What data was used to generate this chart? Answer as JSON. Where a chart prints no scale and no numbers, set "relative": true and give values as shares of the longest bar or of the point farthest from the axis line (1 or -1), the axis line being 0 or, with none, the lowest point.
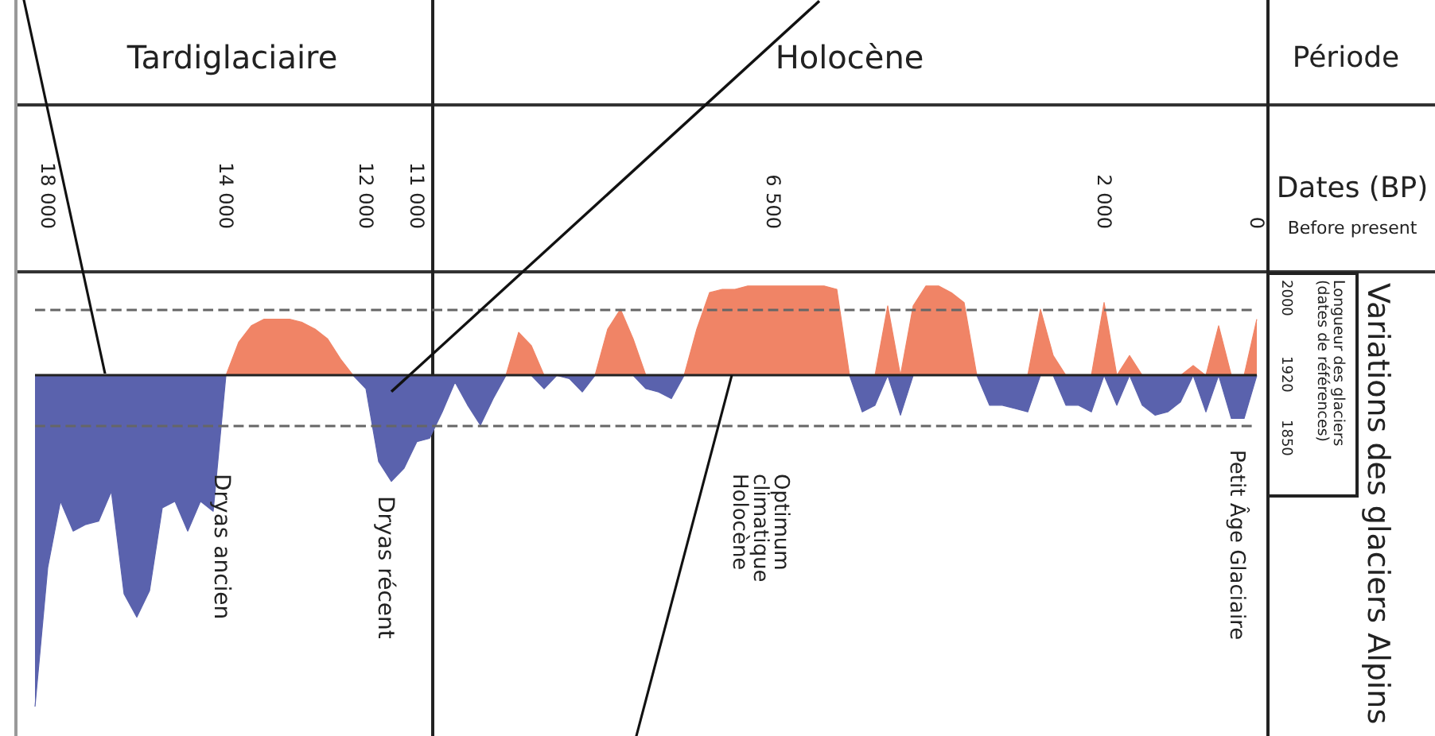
{
  "chart_data": {
    "type": "area",
    "relative": true,
    "xlabel": "Dates (BP)",
    "ylabel": "Variations des glaciers Alpins",
    "categories": [
      null,
      "18 000",
      null,
      null,
      null,
      null,
      null,
      null,
      null,
      null,
      null,
      null,
      null,
      null,
      null,
      "14 000",
      null,
      null,
      null,
      null,
      null,
      null,
      null,
      null,
      null,
      null,
      "12 000",
      null,
      null,
      null,
      "11 000",
      null,
      null,
      null,
      null,
      null,
      null,
      null,
      null,
      null,
      null,
      null,
      null,
      null,
      null,
      null,
      null,
      null,
      null,
      null,
      null,
      null,
      null,
      null,
      null,
      null,
      null,
      null,
      "6 500",
      null,
      null,
      null,
      null,
      null,
      null,
      null,
      null,
      null,
      null,
      null,
      null,
      null,
      null,
      null,
      null,
      null,
      null,
      null,
      null,
      null,
      null,
      null,
      null,
      null,
      "2 000",
      null,
      null,
      null,
      null,
      null,
      null,
      null,
      null,
      null,
      null,
      null,
      "0"
    ],
    "series": [
      {
        "color": "#f08466",
        "values": [
          0,
          0,
          0,
          0,
          0,
          0,
          0,
          0,
          0,
          0,
          0,
          0,
          0,
          0,
          0,
          0,
          0.1,
          0.15,
          0.17,
          0.17,
          0.17,
          0.16,
          0.14,
          0.11,
          0.05,
          0,
          0,
          0,
          0,
          0,
          0,
          0,
          0,
          0,
          0,
          0,
          0,
          0,
          0.13,
          0.09,
          0,
          0,
          0,
          0,
          0,
          0.14,
          0.2,
          0.11,
          0,
          0,
          0,
          0,
          0.14,
          0.25,
          0.26,
          0.26,
          0.27,
          0.27,
          0.27,
          0.27,
          0.27,
          0.27,
          0.27,
          0.26,
          0,
          0,
          0,
          0.21,
          0,
          0.21,
          0.27,
          0.27,
          0.25,
          0.22,
          0,
          0,
          0,
          0,
          0,
          0.2,
          0.06,
          0,
          0,
          0,
          0.22,
          0,
          0.06,
          0,
          0,
          0,
          0,
          0.03,
          0,
          0.15,
          0,
          0,
          0.17
        ]
      },
      {
        "color": "#5a62ad",
        "values": [
          -1,
          -0.58,
          -0.38,
          -0.47,
          -0.45,
          -0.44,
          -0.35,
          -0.66,
          -0.73,
          -0.65,
          -0.4,
          -0.38,
          -0.47,
          -0.38,
          -0.41,
          0,
          0,
          0,
          0,
          0,
          0,
          0,
          0,
          0,
          0,
          0,
          -0.04,
          -0.26,
          -0.32,
          -0.28,
          -0.2,
          -0.19,
          -0.11,
          -0.02,
          -0.09,
          -0.15,
          -0.07,
          0,
          0,
          0,
          -0.04,
          0,
          -0.01,
          -0.05,
          0,
          0,
          0,
          0,
          -0.04,
          -0.05,
          -0.07,
          0,
          0,
          0,
          0,
          0,
          0,
          0,
          0,
          0,
          0,
          0,
          0,
          0,
          0,
          -0.11,
          -0.09,
          0,
          -0.12,
          0,
          0,
          0,
          0,
          0,
          0,
          -0.09,
          -0.09,
          -0.1,
          -0.11,
          0,
          0,
          -0.09,
          -0.09,
          -0.11,
          0,
          -0.09,
          0,
          -0.09,
          -0.12,
          -0.11,
          -0.08,
          0,
          -0.11,
          0,
          -0.13,
          -0.13,
          0
        ]
      }
    ],
    "ref_lines": [
      {
        "axis": "y",
        "value": 0.2,
        "line_style": "dashed",
        "color": "#666666"
      },
      {
        "axis": "y",
        "value": 0,
        "color": "#222222"
      },
      {
        "axis": "y",
        "value": -0.15,
        "line_style": "dashed",
        "color": "#666666"
      }
    ],
    "annotations": [
      "Tardiglaciaire",
      "Holocène",
      "Période",
      "Before present",
      "Dryas ancien",
      "Dryas récent",
      "Optimum climatique Holocène",
      "Petit Âge Glaciaire",
      "Longueur des glaciers (dates de références)",
      "2000",
      "1920",
      "1850"
    ]
  }
}
